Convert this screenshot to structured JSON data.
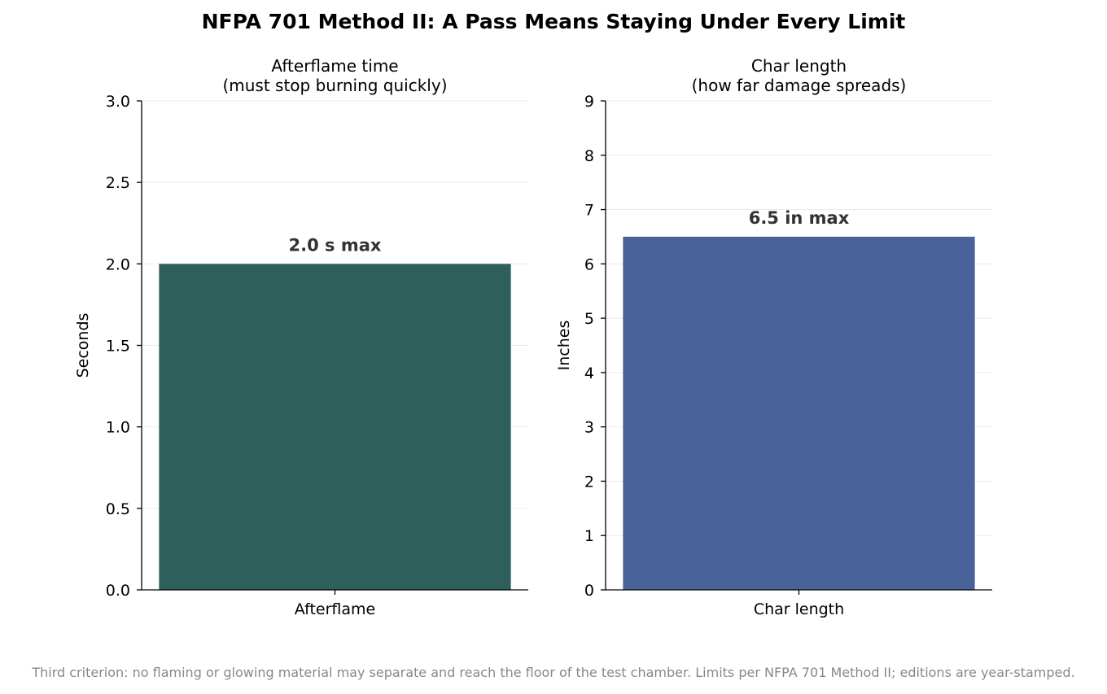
{
  "title": "NFPA 701 Method II: A Pass Means Staying Under Every Limit",
  "footnote": "Third criterion: no flaming or glowing material may separate and reach the floor of the test chamber. Limits per NFPA 701 Method II; editions are year-stamped.",
  "chart_data": [
    {
      "type": "bar",
      "title": [
        "Afterflame time",
        "(must stop burning quickly)"
      ],
      "categories": [
        "Afterflame"
      ],
      "values": [
        2.0
      ],
      "data_labels": [
        "2.0 s max"
      ],
      "xlabel": "",
      "ylabel": "Seconds",
      "ylim": [
        0,
        3.0
      ],
      "yticks": [
        0.0,
        0.5,
        1.0,
        1.5,
        2.0,
        2.5,
        3.0
      ],
      "ytick_labels": [
        "0.0",
        "0.5",
        "1.0",
        "1.5",
        "2.0",
        "2.5",
        "3.0"
      ],
      "color": "#2e5f5a",
      "grid": "horizontal"
    },
    {
      "type": "bar",
      "title": [
        "Char length",
        "(how far damage spreads)"
      ],
      "categories": [
        "Char length"
      ],
      "values": [
        6.5
      ],
      "data_labels": [
        "6.5 in max"
      ],
      "xlabel": "",
      "ylabel": "Inches",
      "ylim": [
        0,
        9
      ],
      "yticks": [
        0,
        1,
        2,
        3,
        4,
        5,
        6,
        7,
        8,
        9
      ],
      "ytick_labels": [
        "0",
        "1",
        "2",
        "3",
        "4",
        "5",
        "6",
        "7",
        "8",
        "9"
      ],
      "color": "#4a629a",
      "grid": "horizontal"
    }
  ]
}
